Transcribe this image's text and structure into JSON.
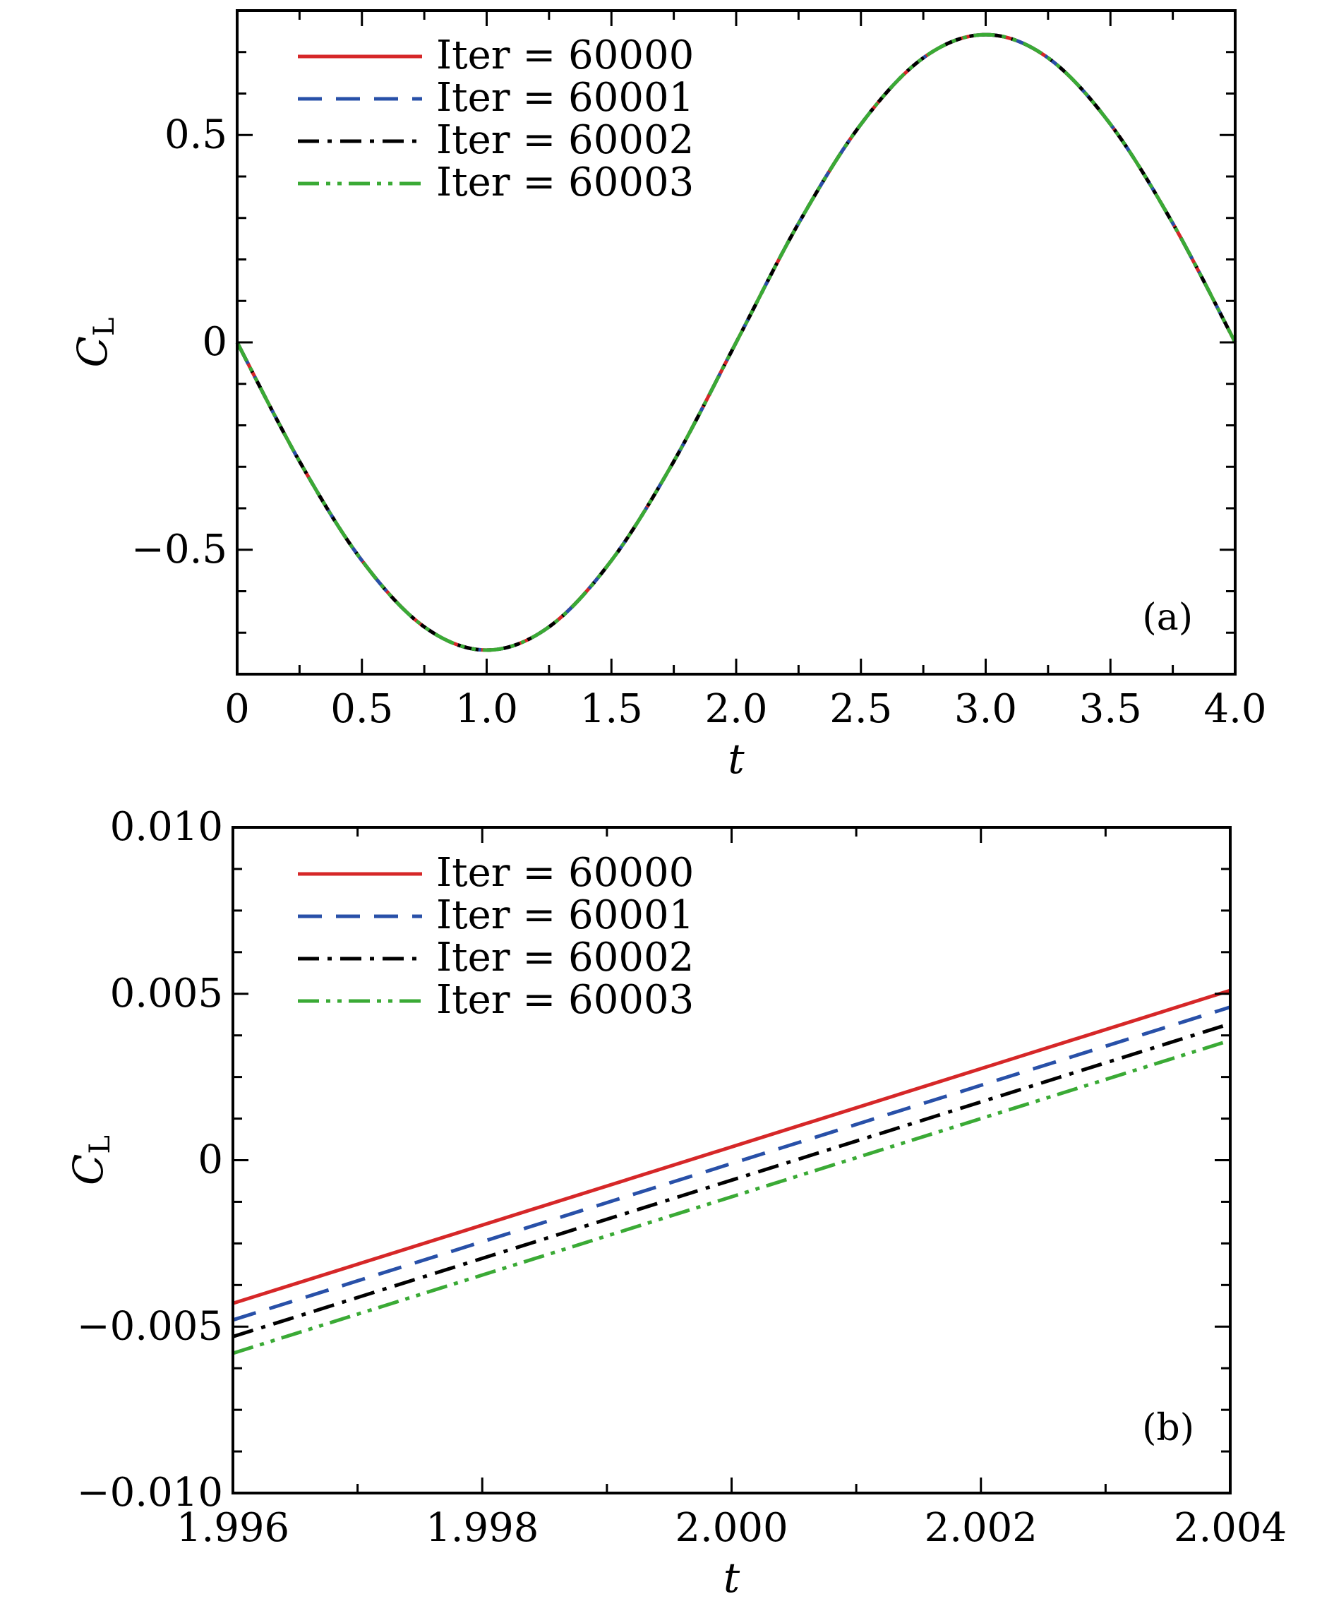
{
  "chart_data": [
    {
      "type": "line",
      "panel_tag": "(a)",
      "xlabel": "t",
      "ylabel": "C",
      "ylabel_sub": "L",
      "xlim": [
        0,
        4.0
      ],
      "ylim": [
        -0.8,
        0.8
      ],
      "x_ticks": [
        0,
        0.5,
        1.0,
        1.5,
        2.0,
        2.5,
        3.0,
        3.5,
        4.0
      ],
      "x_tick_labels": [
        "0",
        "0.5",
        "1.0",
        "1.5",
        "2.0",
        "2.5",
        "3.0",
        "3.5",
        "4.0"
      ],
      "y_ticks": [
        -0.5,
        0,
        0.5
      ],
      "y_tick_labels": [
        "−0.5",
        "0",
        "0.5"
      ],
      "legend_position": "top-left",
      "grid": false,
      "series": [
        {
          "name": "Iter = 60000",
          "color": "#d62728",
          "dash": "solid",
          "x": [
            0,
            0.25,
            0.5,
            0.75,
            1.0,
            1.25,
            1.5,
            1.75,
            2.0,
            2.25,
            2.5,
            2.75,
            3.0,
            3.25,
            3.5,
            3.75,
            4.0
          ],
          "y": [
            0,
            -0.287,
            -0.526,
            -0.686,
            -0.742,
            -0.686,
            -0.526,
            -0.287,
            0,
            0.287,
            0.526,
            0.686,
            0.742,
            0.686,
            0.526,
            0.287,
            0
          ]
        },
        {
          "name": "Iter = 60001",
          "color": "#2850a8",
          "dash": "dashed",
          "x": [
            0,
            0.25,
            0.5,
            0.75,
            1.0,
            1.25,
            1.5,
            1.75,
            2.0,
            2.25,
            2.5,
            2.75,
            3.0,
            3.25,
            3.5,
            3.75,
            4.0
          ],
          "y": [
            0,
            -0.287,
            -0.526,
            -0.686,
            -0.742,
            -0.686,
            -0.526,
            -0.287,
            0,
            0.287,
            0.526,
            0.686,
            0.742,
            0.686,
            0.526,
            0.287,
            0
          ]
        },
        {
          "name": "Iter = 60002",
          "color": "#000000",
          "dash": "dashdot",
          "x": [
            0,
            0.25,
            0.5,
            0.75,
            1.0,
            1.25,
            1.5,
            1.75,
            2.0,
            2.25,
            2.5,
            2.75,
            3.0,
            3.25,
            3.5,
            3.75,
            4.0
          ],
          "y": [
            0,
            -0.287,
            -0.526,
            -0.686,
            -0.742,
            -0.686,
            -0.526,
            -0.287,
            0,
            0.287,
            0.526,
            0.686,
            0.742,
            0.686,
            0.526,
            0.287,
            0
          ]
        },
        {
          "name": "Iter = 60003",
          "color": "#3aaa35",
          "dash": "dashdotdot",
          "x": [
            0,
            0.25,
            0.5,
            0.75,
            1.0,
            1.25,
            1.5,
            1.75,
            2.0,
            2.25,
            2.5,
            2.75,
            3.0,
            3.25,
            3.5,
            3.75,
            4.0
          ],
          "y": [
            0,
            -0.287,
            -0.526,
            -0.686,
            -0.742,
            -0.686,
            -0.526,
            -0.287,
            0,
            0.287,
            0.526,
            0.686,
            0.742,
            0.686,
            0.526,
            0.287,
            0
          ]
        }
      ]
    },
    {
      "type": "line",
      "panel_tag": "(b)",
      "xlabel": "t",
      "ylabel": "C",
      "ylabel_sub": "L",
      "xlim": [
        1.996,
        2.004
      ],
      "ylim": [
        -0.01,
        0.01
      ],
      "x_ticks": [
        1.996,
        1.998,
        2.0,
        2.002,
        2.004
      ],
      "x_tick_labels": [
        "1.996",
        "1.998",
        "2.000",
        "2.002",
        "2.004"
      ],
      "y_ticks": [
        -0.01,
        -0.005,
        0,
        0.005,
        0.01
      ],
      "y_tick_labels": [
        "−0.010",
        "−0.005",
        "0",
        "0.005",
        "0.010"
      ],
      "legend_position": "top-left",
      "grid": false,
      "series": [
        {
          "name": "Iter = 60000",
          "color": "#d62728",
          "dash": "solid",
          "x": [
            1.996,
            2.004
          ],
          "y": [
            -0.0043,
            0.0051
          ]
        },
        {
          "name": "Iter = 60001",
          "color": "#2850a8",
          "dash": "dashed",
          "x": [
            1.996,
            2.004
          ],
          "y": [
            -0.0048,
            0.0046
          ]
        },
        {
          "name": "Iter = 60002",
          "color": "#000000",
          "dash": "dashdot",
          "x": [
            1.996,
            2.004
          ],
          "y": [
            -0.0053,
            0.0041
          ]
        },
        {
          "name": "Iter = 60003",
          "color": "#3aaa35",
          "dash": "dashdotdot",
          "x": [
            1.996,
            2.004
          ],
          "y": [
            -0.0058,
            0.0036
          ]
        }
      ]
    }
  ]
}
